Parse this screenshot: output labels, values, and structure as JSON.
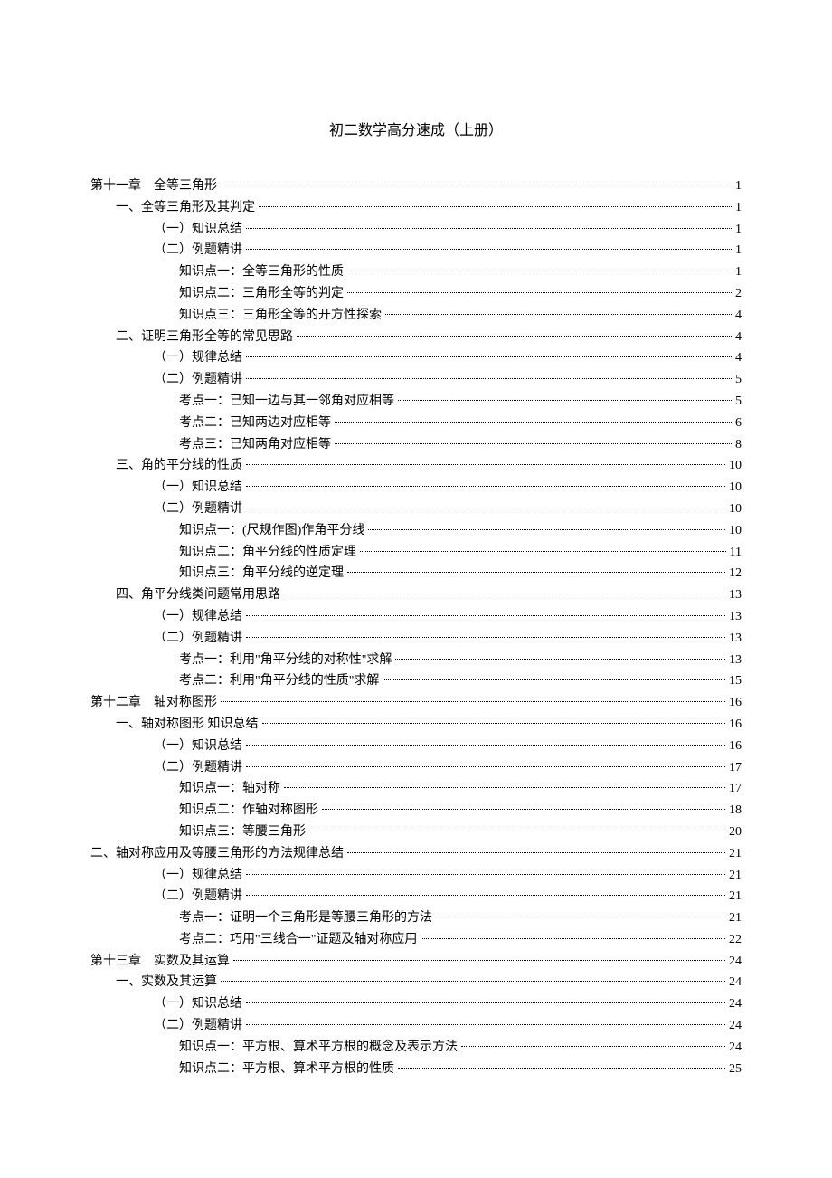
{
  "title": "初二数学高分速成（上册）",
  "text_color": "#000000",
  "background_color": "#ffffff",
  "font_size_title": 16,
  "font_size_entry": 14,
  "entries": [
    {
      "indent": 0,
      "label": "第十一章　全等三角形",
      "page": "1"
    },
    {
      "indent": 1,
      "label": "一、全等三角形及其判定",
      "page": "1"
    },
    {
      "indent": 2,
      "label": "（一）知识总结",
      "page": "1"
    },
    {
      "indent": 2,
      "label": "（二）例题精讲",
      "page": "1"
    },
    {
      "indent": 3,
      "label": "知识点一：全等三角形的性质",
      "page": "1"
    },
    {
      "indent": 3,
      "label": "知识点二：三角形全等的判定",
      "page": "2"
    },
    {
      "indent": 3,
      "label": "知识点三：三角形全等的开方性探索",
      "page": "4"
    },
    {
      "indent": 1,
      "label": "二、证明三角形全等的常见思路",
      "page": "4"
    },
    {
      "indent": 2,
      "label": "（一）规律总结",
      "page": "4"
    },
    {
      "indent": 2,
      "label": "（二）例题精讲",
      "page": "5"
    },
    {
      "indent": 3,
      "label": "考点一：已知一边与其一邻角对应相等",
      "page": "5"
    },
    {
      "indent": 3,
      "label": "考点二：已知两边对应相等",
      "page": "6"
    },
    {
      "indent": 3,
      "label": "考点三：已知两角对应相等",
      "page": "8"
    },
    {
      "indent": 1,
      "label": "三、角的平分线的性质",
      "page": "10"
    },
    {
      "indent": 2,
      "label": "（一）知识总结",
      "page": "10"
    },
    {
      "indent": 2,
      "label": "（二）例题精讲",
      "page": "10"
    },
    {
      "indent": 3,
      "label": "知识点一：(尺规作图)作角平分线",
      "page": "10"
    },
    {
      "indent": 3,
      "label": "知识点二：角平分线的性质定理",
      "page": "11"
    },
    {
      "indent": 3,
      "label": "知识点三：角平分线的逆定理",
      "page": "12"
    },
    {
      "indent": 1,
      "label": "四、角平分线类问题常用思路",
      "page": "13"
    },
    {
      "indent": 2,
      "label": "（一）规律总结",
      "page": "13"
    },
    {
      "indent": 2,
      "label": "（二）例题精讲",
      "page": "13"
    },
    {
      "indent": 3,
      "label": "考点一：利用\"角平分线的对称性\"求解",
      "page": "13"
    },
    {
      "indent": 3,
      "label": "考点二：利用\"角平分线的性质\"求解",
      "page": "15"
    },
    {
      "indent": 0,
      "label": "第十二章　轴对称图形",
      "page": "16"
    },
    {
      "indent": 1,
      "label": "一、轴对称图形 知识总结",
      "page": "16"
    },
    {
      "indent": 2,
      "label": "（一）知识总结",
      "page": "16"
    },
    {
      "indent": 2,
      "label": "（二）例题精讲",
      "page": "17"
    },
    {
      "indent": 3,
      "label": "知识点一：轴对称",
      "page": "17"
    },
    {
      "indent": 3,
      "label": "知识点二：作轴对称图形",
      "page": "18"
    },
    {
      "indent": 3,
      "label": "知识点三：等腰三角形",
      "page": "20"
    },
    {
      "indent": 0,
      "label": "二、轴对称应用及等腰三角形的方法规律总结",
      "page": "21"
    },
    {
      "indent": 2,
      "label": "（一）规律总结",
      "page": "21"
    },
    {
      "indent": 2,
      "label": "（二）例题精讲",
      "page": "21"
    },
    {
      "indent": 3,
      "label": "考点一：证明一个三角形是等腰三角形的方法",
      "page": "21"
    },
    {
      "indent": 3,
      "label": "考点二：巧用\"三线合一\"证题及轴对称应用",
      "page": "22"
    },
    {
      "indent": 0,
      "label": "第十三章　实数及其运算",
      "page": "24"
    },
    {
      "indent": 1,
      "label": "一、实数及其运算",
      "page": "24"
    },
    {
      "indent": 2,
      "label": "（一）知识总结",
      "page": "24"
    },
    {
      "indent": 2,
      "label": "（二）例题精讲",
      "page": "24"
    },
    {
      "indent": 3,
      "label": "知识点一：平方根、算术平方根的概念及表示方法",
      "page": "24"
    },
    {
      "indent": 3,
      "label": "知识点二：平方根、算术平方根的性质",
      "page": "25"
    }
  ]
}
